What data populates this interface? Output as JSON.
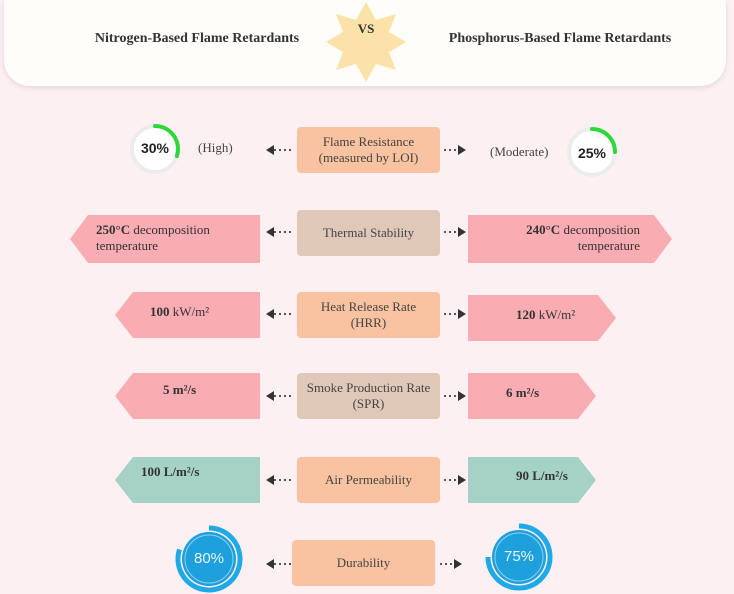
{
  "colors": {
    "header_bg": "#fefdf9",
    "star": "#fbe2a8",
    "peach": "#f9c2a0",
    "tan": "#dfc8b7",
    "pink": "#f9adb2",
    "teal": "#a6d2c5",
    "green_ring": "#2ed83a",
    "blue_ring": "#1eaae6"
  },
  "header": {
    "left_title": "Nitrogen-Based Flame Retardants",
    "vs": "VS",
    "right_title": "Phosphorus-Based Flame Retardants"
  },
  "rows": [
    {
      "label": "Flame Resistance\n(measured by LOI)",
      "left": {
        "value": "30%",
        "fraction": 0.3,
        "note": "(High)"
      },
      "right": {
        "value": "25%",
        "fraction": 0.25,
        "note": "(Moderate)"
      }
    },
    {
      "label": "Thermal Stability",
      "left": {
        "bold": "250°C",
        "rest": " decomposition\ntemperature"
      },
      "right": {
        "bold": "240°C",
        "rest": " decomposition\ntemperature"
      }
    },
    {
      "label": "Heat Release Rate\n(HRR)",
      "left": {
        "bold": "100",
        "rest": " kW/m²"
      },
      "right": {
        "bold": "120",
        "rest": " kW/m²"
      }
    },
    {
      "label": "Smoke Production Rate\n(SPR)",
      "left": {
        "bold": "5 m²/s",
        "rest": ""
      },
      "right": {
        "bold": "6 m²/s",
        "rest": ""
      }
    },
    {
      "label": "Air Permeability",
      "left": {
        "bold": "100 L/m²/s",
        "rest": ""
      },
      "right": {
        "bold": "90 L/m²/s",
        "rest": ""
      }
    },
    {
      "label": "Durability",
      "left": {
        "value": "80%",
        "fraction": 0.8
      },
      "right": {
        "value": "75%",
        "fraction": 0.75
      }
    }
  ]
}
